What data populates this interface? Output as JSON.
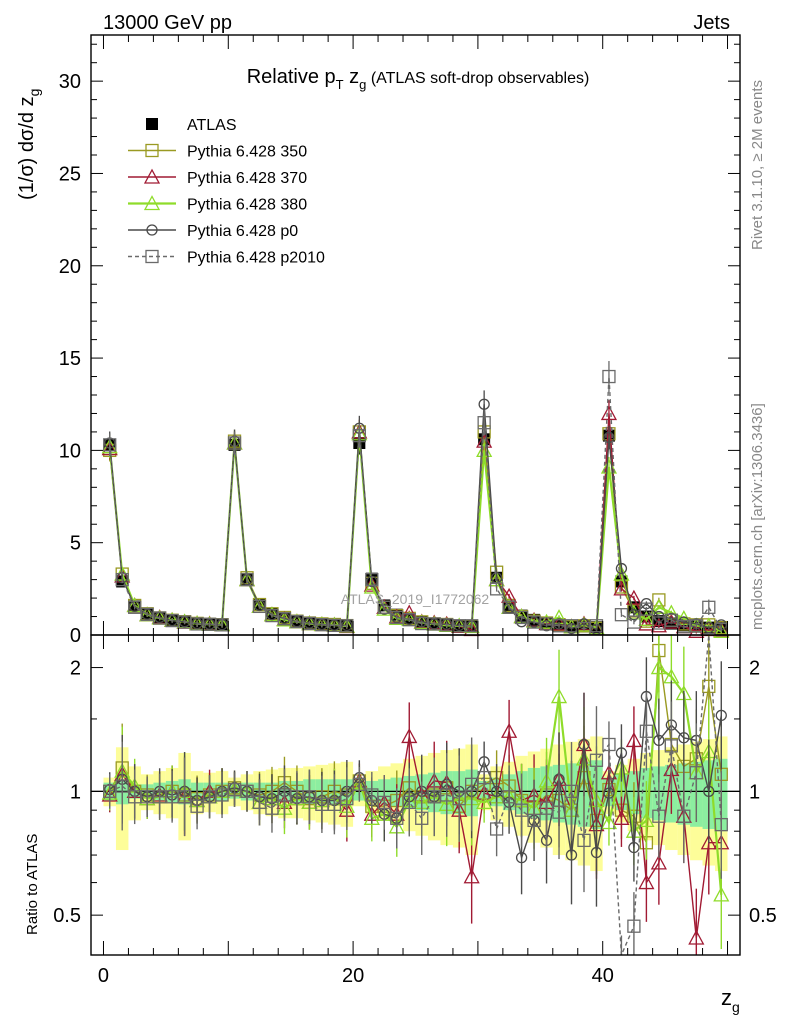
{
  "header": {
    "left": "13000 GeV pp",
    "right": "Jets"
  },
  "side_labels": {
    "rivet": "Rivet 3.1.10, ≥ 2M events",
    "mcplots": "mcplots.cern.ch [arXiv:1306.3436]"
  },
  "plot": {
    "title_pre": "Relative p",
    "title_sub_t": "T",
    "title_mid": " z",
    "title_sub_g": "g",
    "title_post": " (ATLAS soft-drop observables)",
    "watermark": "ATLAS_2019_I1772062",
    "ylabel": "(1/σ) dσ/d z",
    "ylabel_sub": "g",
    "xlabel": "z",
    "xlabel_sub": "g",
    "ratio_ylabel": "Ratio to ATLAS"
  },
  "legend": [
    {
      "label": "ATLAS",
      "color": "#000000",
      "marker": "filled-square",
      "line": "none"
    },
    {
      "label": "Pythia 6.428 350",
      "color": "#9a9a22",
      "marker": "open-square",
      "line": "solid"
    },
    {
      "label": "Pythia 6.428 370",
      "color": "#a11a33",
      "marker": "open-triangle",
      "line": "solid"
    },
    {
      "label": "Pythia 6.428 380",
      "color": "#8fdc2a",
      "marker": "open-triangle",
      "line": "solid"
    },
    {
      "label": "Pythia 6.428 p0",
      "color": "#4a4a4a",
      "marker": "open-circle",
      "line": "solid"
    },
    {
      "label": "Pythia 6.428 p2010",
      "color": "#6a6a6a",
      "marker": "open-square",
      "line": "dashed"
    }
  ],
  "chart_data": [
    {
      "type": "line",
      "panel": "main",
      "xlim": [
        -1,
        51
      ],
      "ylim": [
        0,
        32.5
      ],
      "x_ticks": [
        0,
        20,
        40
      ],
      "y_ticks": [
        0,
        5,
        10,
        15,
        20,
        25,
        30
      ],
      "x": [
        0.5,
        1.5,
        2.5,
        3.5,
        4.5,
        5.5,
        6.5,
        7.5,
        8.5,
        9.5,
        10.5,
        11.5,
        12.5,
        13.5,
        14.5,
        15.5,
        16.5,
        17.5,
        18.5,
        19.5,
        20.5,
        21.5,
        22.5,
        23.5,
        24.5,
        25.5,
        26.5,
        27.5,
        28.5,
        29.5,
        30.5,
        31.5,
        32.5,
        33.5,
        34.5,
        35.5,
        36.5,
        37.5,
        38.5,
        39.5,
        40.5,
        41.5,
        42.5,
        43.5,
        44.5,
        45.5,
        46.5,
        47.5,
        48.5,
        49.5
      ],
      "series": [
        {
          "name": "ATLAS",
          "values": [
            10.3,
            2.9,
            1.55,
            1.15,
            0.95,
            0.8,
            0.72,
            0.65,
            0.6,
            0.56,
            10.3,
            3.0,
            1.65,
            1.15,
            0.9,
            0.75,
            0.66,
            0.6,
            0.56,
            0.52,
            10.4,
            3.05,
            1.6,
            1.1,
            0.88,
            0.72,
            0.62,
            0.56,
            0.52,
            0.48,
            10.6,
            3.1,
            1.55,
            1.05,
            0.82,
            0.66,
            0.56,
            0.5,
            0.46,
            0.42,
            10.8,
            2.9,
            1.5,
            1.0,
            0.75,
            0.62,
            0.52,
            0.45,
            0.4,
            0.36
          ]
        },
        {
          "name": "Pythia 6.428 350",
          "values": [
            10.0,
            3.3,
            1.6,
            1.15,
            0.92,
            0.8,
            0.72,
            0.63,
            0.58,
            0.56,
            10.5,
            3.1,
            1.65,
            1.15,
            0.95,
            0.75,
            0.65,
            0.6,
            0.57,
            0.51,
            11.0,
            2.8,
            1.5,
            1.05,
            0.9,
            0.71,
            0.6,
            0.57,
            0.48,
            0.48,
            11.0,
            3.4,
            1.6,
            1.0,
            0.75,
            0.65,
            0.56,
            0.45,
            0.5,
            0.36,
            10.9,
            2.6,
            1.3,
            0.75,
            1.9,
            0.8,
            0.6,
            0.55,
            0.55,
            0.4
          ]
        },
        {
          "name": "Pythia 6.428 370",
          "values": [
            10.1,
            3.2,
            1.6,
            1.1,
            0.95,
            0.8,
            0.7,
            0.62,
            0.6,
            0.56,
            10.4,
            3.0,
            1.55,
            1.1,
            0.85,
            0.72,
            0.62,
            0.57,
            0.54,
            0.46,
            11.0,
            2.7,
            1.5,
            0.98,
            1.2,
            0.71,
            0.66,
            0.59,
            0.47,
            0.3,
            10.5,
            3.0,
            2.1,
            1.0,
            0.8,
            0.62,
            0.6,
            0.45,
            0.6,
            0.35,
            12.0,
            2.5,
            2.0,
            0.6,
            0.5,
            0.7,
            0.45,
            0.2,
            0.3,
            0.27
          ]
        },
        {
          "name": "Pythia 6.428 380",
          "values": [
            10.2,
            3.3,
            1.6,
            1.1,
            0.92,
            0.8,
            0.72,
            0.62,
            0.58,
            0.56,
            10.4,
            3.0,
            1.55,
            1.1,
            0.82,
            0.72,
            0.62,
            0.57,
            0.54,
            0.48,
            10.9,
            2.6,
            1.4,
            0.9,
            0.84,
            0.68,
            0.6,
            0.52,
            0.5,
            0.46,
            10.0,
            3.0,
            1.5,
            1.0,
            0.75,
            0.7,
            0.95,
            0.45,
            0.55,
            0.4,
            9.1,
            3.3,
            1.2,
            0.85,
            1.5,
            1.2,
            0.9,
            0.5,
            0.5,
            0.2
          ]
        },
        {
          "name": "Pythia 6.428 p0",
          "values": [
            10.4,
            3.1,
            1.55,
            1.12,
            0.95,
            0.78,
            0.72,
            0.62,
            0.58,
            0.56,
            10.5,
            3.0,
            1.6,
            1.1,
            0.9,
            0.72,
            0.64,
            0.57,
            0.53,
            0.52,
            11.2,
            2.9,
            1.4,
            0.95,
            0.85,
            0.72,
            0.6,
            0.58,
            0.52,
            0.48,
            12.5,
            3.1,
            1.45,
            0.72,
            0.7,
            0.5,
            0.6,
            0.35,
            0.6,
            0.3,
            10.7,
            3.6,
            1.1,
            1.7,
            1.0,
            0.9,
            0.7,
            0.6,
            0.4,
            0.55
          ]
        },
        {
          "name": "Pythia 6.428 p2010",
          "values": [
            10.3,
            3.0,
            1.5,
            1.12,
            0.92,
            0.78,
            0.7,
            0.6,
            0.58,
            0.55,
            10.4,
            3.0,
            1.55,
            1.05,
            0.88,
            0.73,
            0.63,
            0.56,
            0.52,
            0.5,
            10.8,
            3.0,
            1.5,
            0.95,
            0.83,
            0.62,
            0.6,
            0.55,
            0.5,
            0.5,
            11.5,
            2.5,
            1.5,
            0.95,
            0.7,
            0.6,
            0.5,
            0.5,
            0.35,
            0.5,
            14.0,
            1.1,
            0.7,
            1.4,
            0.65,
            0.8,
            0.45,
            0.5,
            1.5,
            0.3
          ]
        }
      ]
    },
    {
      "type": "line",
      "panel": "ratio",
      "ylim": [
        0.4,
        2.4
      ],
      "y_ticks": [
        0.5,
        1,
        2
      ],
      "x": [
        0.5,
        1.5,
        2.5,
        3.5,
        4.5,
        5.5,
        6.5,
        7.5,
        8.5,
        9.5,
        10.5,
        11.5,
        12.5,
        13.5,
        14.5,
        15.5,
        16.5,
        17.5,
        18.5,
        19.5,
        20.5,
        21.5,
        22.5,
        23.5,
        24.5,
        25.5,
        26.5,
        27.5,
        28.5,
        29.5,
        30.5,
        31.5,
        32.5,
        33.5,
        34.5,
        35.5,
        36.5,
        37.5,
        38.5,
        39.5,
        40.5,
        41.5,
        42.5,
        43.5,
        44.5,
        45.5,
        46.5,
        47.5,
        48.5,
        49.5
      ],
      "band_stat": [
        0.05,
        0.07,
        0.04,
        0.04,
        0.05,
        0.06,
        0.07,
        0.05,
        0.05,
        0.05,
        0.04,
        0.05,
        0.05,
        0.05,
        0.06,
        0.06,
        0.07,
        0.07,
        0.07,
        0.07,
        0.05,
        0.06,
        0.07,
        0.08,
        0.09,
        0.1,
        0.11,
        0.12,
        0.12,
        0.13,
        0.06,
        0.08,
        0.1,
        0.12,
        0.14,
        0.15,
        0.16,
        0.17,
        0.18,
        0.19,
        0.08,
        0.1,
        0.12,
        0.14,
        0.15,
        0.16,
        0.17,
        0.18,
        0.19,
        0.2
      ],
      "band_total": [
        0.08,
        0.28,
        0.15,
        0.1,
        0.12,
        0.14,
        0.24,
        0.12,
        0.11,
        0.12,
        0.08,
        0.1,
        0.12,
        0.13,
        0.14,
        0.14,
        0.15,
        0.16,
        0.17,
        0.18,
        0.08,
        0.12,
        0.15,
        0.17,
        0.2,
        0.22,
        0.24,
        0.26,
        0.27,
        0.3,
        0.1,
        0.15,
        0.18,
        0.22,
        0.25,
        0.27,
        0.3,
        0.32,
        0.34,
        0.36,
        0.12,
        0.16,
        0.2,
        0.24,
        0.26,
        0.28,
        0.3,
        0.32,
        0.34,
        0.36
      ],
      "series": [
        {
          "name": "Pythia 6.428 350",
          "values": [
            1.0,
            1.14,
            1.0,
            0.98,
            0.97,
            1.0,
            0.98,
            0.96,
            0.98,
            1.0,
            1.02,
            1.0,
            0.98,
            1.0,
            1.05,
            1.0,
            0.96,
            0.97,
            1.0,
            0.98,
            1.06,
            0.92,
            0.92,
            0.95,
            1.02,
            0.97,
            0.98,
            1.02,
            0.92,
            1.0,
            1.04,
            1.08,
            1.03,
            0.95,
            0.91,
            0.98,
            0.95,
            0.9,
            1.08,
            0.85,
            1.01,
            0.9,
            0.87,
            0.75,
            2.2,
            1.3,
            1.15,
            1.2,
            1.8,
            1.1
          ]
        },
        {
          "name": "Pythia 6.428 370",
          "values": [
            0.98,
            1.1,
            1.0,
            0.96,
            0.98,
            1.0,
            0.97,
            0.95,
            1.0,
            1.0,
            1.01,
            1.0,
            0.94,
            0.96,
            0.94,
            0.96,
            0.94,
            0.95,
            0.96,
            0.9,
            1.06,
            0.88,
            0.94,
            0.88,
            1.36,
            0.98,
            1.06,
            1.05,
            0.9,
            0.62,
            0.99,
            0.97,
            1.4,
            0.95,
            0.98,
            0.94,
            1.07,
            0.9,
            1.3,
            0.83,
            1.11,
            0.86,
            1.33,
            0.6,
            0.67,
            1.13,
            0.87,
            0.44,
            0.75,
            0.75
          ]
        },
        {
          "name": "Pythia 6.428 380",
          "values": [
            0.99,
            1.12,
            1.03,
            0.96,
            0.97,
            1.0,
            1.0,
            0.95,
            0.97,
            1.0,
            1.01,
            1.0,
            0.94,
            0.96,
            0.91,
            0.96,
            0.94,
            0.95,
            0.96,
            0.92,
            1.05,
            0.86,
            0.88,
            0.82,
            0.95,
            0.94,
            0.97,
            0.93,
            0.96,
            0.96,
            0.94,
            0.97,
            0.97,
            0.95,
            0.91,
            1.06,
            1.7,
            0.9,
            1.2,
            0.95,
            0.84,
            1.14,
            0.8,
            0.85,
            2.0,
            1.9,
            1.73,
            1.11,
            1.25,
            0.56
          ]
        },
        {
          "name": "Pythia 6.428 p0",
          "values": [
            1.01,
            1.07,
            1.0,
            0.97,
            1.0,
            0.98,
            1.0,
            0.95,
            0.97,
            1.0,
            1.02,
            1.0,
            0.97,
            0.96,
            1.0,
            0.96,
            0.97,
            0.95,
            0.95,
            1.0,
            1.08,
            0.95,
            0.88,
            0.86,
            0.97,
            1.0,
            0.97,
            1.04,
            1.0,
            1.0,
            1.18,
            1.0,
            0.94,
            0.69,
            0.85,
            0.76,
            1.07,
            0.7,
            1.3,
            0.71,
            0.99,
            1.24,
            0.73,
            1.7,
            1.33,
            1.45,
            1.35,
            1.33,
            1.0,
            1.53
          ]
        },
        {
          "name": "Pythia 6.428 p2010",
          "values": [
            1.0,
            1.03,
            0.97,
            0.97,
            0.97,
            0.97,
            0.97,
            0.92,
            0.97,
            0.98,
            1.01,
            1.0,
            0.94,
            0.91,
            0.98,
            0.97,
            0.97,
            0.93,
            0.93,
            0.96,
            1.04,
            0.98,
            0.94,
            0.86,
            0.94,
            0.86,
            0.97,
            0.98,
            0.96,
            1.04,
            1.08,
            0.81,
            0.97,
            0.9,
            0.85,
            0.91,
            0.89,
            1.0,
            0.76,
            1.19,
            1.3,
            0.38,
            0.47,
            1.4,
            0.87,
            1.29,
            0.87,
            1.11,
            3.75,
            0.83
          ]
        }
      ]
    }
  ]
}
